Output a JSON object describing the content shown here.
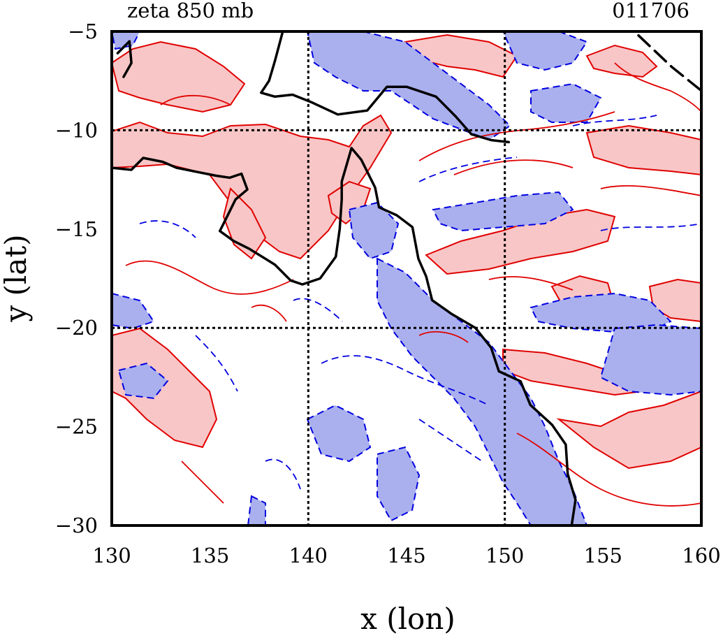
{
  "header": {
    "left_title": "zeta 850 mb",
    "right_title": "011706"
  },
  "axes": {
    "xlabel": "x (lon)",
    "ylabel": "y (lat)",
    "xlim": [
      130,
      160
    ],
    "ylim": [
      -30,
      -5
    ],
    "xticks": [
      {
        "value": 130,
        "label": "130"
      },
      {
        "value": 135,
        "label": "135"
      },
      {
        "value": 140,
        "label": "140"
      },
      {
        "value": 145,
        "label": "145"
      },
      {
        "value": 150,
        "label": "150"
      },
      {
        "value": 155,
        "label": "155"
      },
      {
        "value": 160,
        "label": "160"
      }
    ],
    "yticks": [
      {
        "value": -5,
        "label": "−5"
      },
      {
        "value": -10,
        "label": "−10"
      },
      {
        "value": -15,
        "label": "−15"
      },
      {
        "value": -20,
        "label": "−20"
      },
      {
        "value": -25,
        "label": "−25"
      },
      {
        "value": -30,
        "label": "−30"
      }
    ],
    "gridlines_lon": [
      140,
      150
    ],
    "gridlines_lat": [
      -10,
      -20
    ]
  },
  "colors": {
    "positive_fill": "#f8c6c6",
    "positive_line": "#e00000",
    "negative_fill": "#aab0ee",
    "negative_line": "#0000e0",
    "coast": "#000000"
  },
  "map_data": {
    "coastline": [
      [
        [
          138.7,
          -5.0
        ],
        [
          138.3,
          -6.5
        ],
        [
          138.0,
          -7.5
        ],
        [
          137.6,
          -8.1
        ],
        [
          138.3,
          -8.3
        ],
        [
          139.2,
          -8.2
        ],
        [
          140.2,
          -8.6
        ],
        [
          141.5,
          -9.2
        ],
        [
          143.0,
          -9.0
        ],
        [
          144.0,
          -7.8
        ],
        [
          145.0,
          -7.8
        ],
        [
          146.5,
          -8.3
        ],
        [
          147.5,
          -9.3
        ],
        [
          148.3,
          -10.2
        ],
        [
          149.3,
          -10.5
        ],
        [
          150.2,
          -10.6
        ]
      ],
      [
        [
          130.0,
          -11.9
        ],
        [
          131.0,
          -12.0
        ],
        [
          131.6,
          -11.4
        ],
        [
          132.6,
          -11.6
        ],
        [
          133.3,
          -11.9
        ],
        [
          134.3,
          -12.1
        ],
        [
          135.3,
          -12.3
        ],
        [
          136.0,
          -12.4
        ],
        [
          136.6,
          -12.2
        ],
        [
          136.9,
          -13.0
        ],
        [
          136.3,
          -13.5
        ],
        [
          135.8,
          -14.5
        ],
        [
          135.5,
          -15.1
        ],
        [
          136.2,
          -15.6
        ],
        [
          137.0,
          -16.0
        ],
        [
          138.3,
          -16.8
        ],
        [
          139.1,
          -17.6
        ],
        [
          139.7,
          -17.8
        ],
        [
          140.6,
          -17.5
        ],
        [
          141.4,
          -16.4
        ],
        [
          141.6,
          -15.0
        ],
        [
          141.7,
          -13.5
        ],
        [
          141.7,
          -12.6
        ],
        [
          142.2,
          -10.9
        ],
        [
          142.7,
          -11.5
        ],
        [
          143.4,
          -12.9
        ],
        [
          143.6,
          -13.9
        ],
        [
          144.5,
          -14.3
        ],
        [
          145.3,
          -14.9
        ],
        [
          145.6,
          -16.5
        ],
        [
          146.0,
          -17.4
        ],
        [
          146.3,
          -18.6
        ],
        [
          147.3,
          -19.3
        ],
        [
          148.5,
          -20.0
        ],
        [
          149.3,
          -21.0
        ],
        [
          149.7,
          -22.2
        ],
        [
          150.8,
          -22.7
        ],
        [
          151.3,
          -23.9
        ],
        [
          152.4,
          -24.9
        ],
        [
          153.1,
          -25.9
        ],
        [
          153.2,
          -27.4
        ],
        [
          153.6,
          -28.7
        ],
        [
          153.4,
          -30.0
        ]
      ],
      [
        [
          130.3,
          -6.1
        ],
        [
          130.9,
          -5.5
        ],
        [
          131.0,
          -6.6
        ],
        [
          130.6,
          -7.3
        ]
      ],
      [
        [
          156.8,
          -5.2
        ],
        [
          158.5,
          -6.8
        ],
        [
          160.0,
          -8.0
        ]
      ]
    ],
    "land_labels": []
  }
}
